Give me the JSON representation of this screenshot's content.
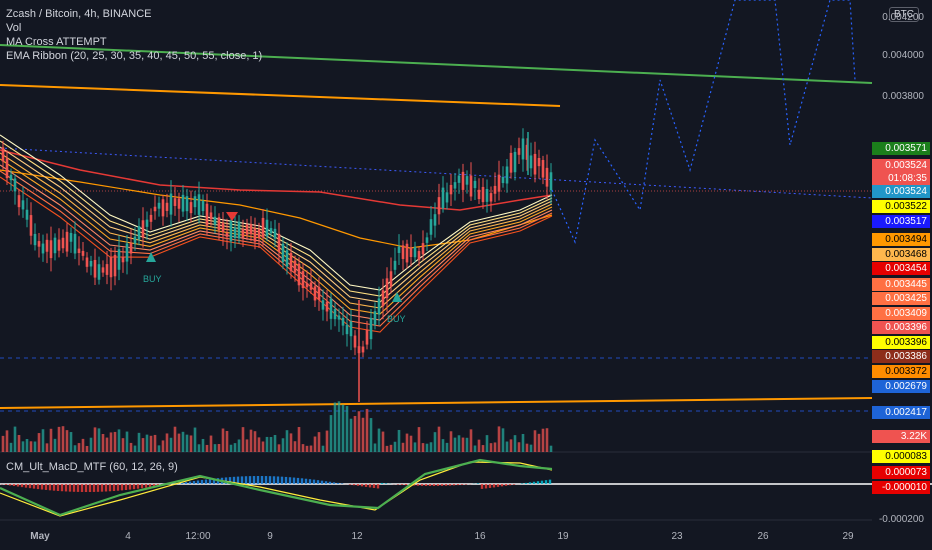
{
  "legend": {
    "symbol": "Zcash / Bitcoin, 4h, BINANCE",
    "vol": "Vol",
    "ma_cross": "MA Cross ATTEMPT",
    "ema_ribbon": "EMA Ribbon (20, 25, 30, 35, 40, 45, 50, 55, close, 1)"
  },
  "macd_legend": "CM_Ult_MacD_MTF (60, 12, 26, 9)",
  "currency": "BTC",
  "price_scale_ticks": [
    "0.004200",
    "0.004000",
    "0.003800"
  ],
  "price_tags": [
    {
      "label": "0.003571",
      "bg": "#1b7f1b",
      "fg": "#ffffff"
    },
    {
      "label": "0.003524",
      "bg": "#ef5350",
      "fg": "#ffffff"
    },
    {
      "label": "01:08:35",
      "bg": "#ef5350",
      "fg": "#ffffff"
    },
    {
      "label": "0.003524",
      "bg": "#2196c8",
      "fg": "#ffffff"
    },
    {
      "label": "0.003522",
      "bg": "#ffff00",
      "fg": "#000000"
    },
    {
      "label": "0.003517",
      "bg": "#1a1aff",
      "fg": "#ffffff"
    },
    {
      "label": "0.003494",
      "bg": "#ff9800",
      "fg": "#000000"
    },
    {
      "label": "0.003468",
      "bg": "#ffb74d",
      "fg": "#000000"
    },
    {
      "label": "0.003454",
      "bg": "#e60000",
      "fg": "#ffffff"
    },
    {
      "label": "0.003445",
      "bg": "#ff7043",
      "fg": "#ffffff"
    },
    {
      "label": "0.003425",
      "bg": "#ff7043",
      "fg": "#ffffff"
    },
    {
      "label": "0.003409",
      "bg": "#ff7043",
      "fg": "#ffffff"
    },
    {
      "label": "0.003396",
      "bg": "#ef5350",
      "fg": "#ffffff"
    },
    {
      "label": "0.003396",
      "bg": "#ffff00",
      "fg": "#000000"
    },
    {
      "label": "0.003386",
      "bg": "#8d2d1a",
      "fg": "#ffffff"
    },
    {
      "label": "0.003372",
      "bg": "#ff8c00",
      "fg": "#000000"
    },
    {
      "label": "0.002679",
      "bg": "#1e64d7",
      "fg": "#ffffff"
    },
    {
      "label": "0.002417",
      "bg": "#1e64d7",
      "fg": "#ffffff"
    },
    {
      "label": "3.22K",
      "bg": "#ef5350",
      "fg": "#ffffff"
    },
    {
      "label": "0.000083",
      "bg": "#ffff00",
      "fg": "#000000"
    },
    {
      "label": "0.000073",
      "bg": "#e60000",
      "fg": "#ffffff"
    },
    {
      "label": "-0.000010",
      "bg": "#e60000",
      "fg": "#ffffff"
    }
  ],
  "macd_scale_tick": "-0.000200",
  "time_axis": [
    "May",
    "4",
    "12:00",
    "9",
    "12",
    "16",
    "19",
    "23",
    "26",
    "29"
  ],
  "annotations": {
    "buy1": "BUY",
    "buy2": "BUY"
  },
  "colors": {
    "background": "#131722",
    "up_candle": "#26a69a",
    "down_candle": "#ef5350",
    "trend_green": "#4caf50",
    "trend_orange": "#ff9800",
    "projection_blue": "#2962ff"
  }
}
